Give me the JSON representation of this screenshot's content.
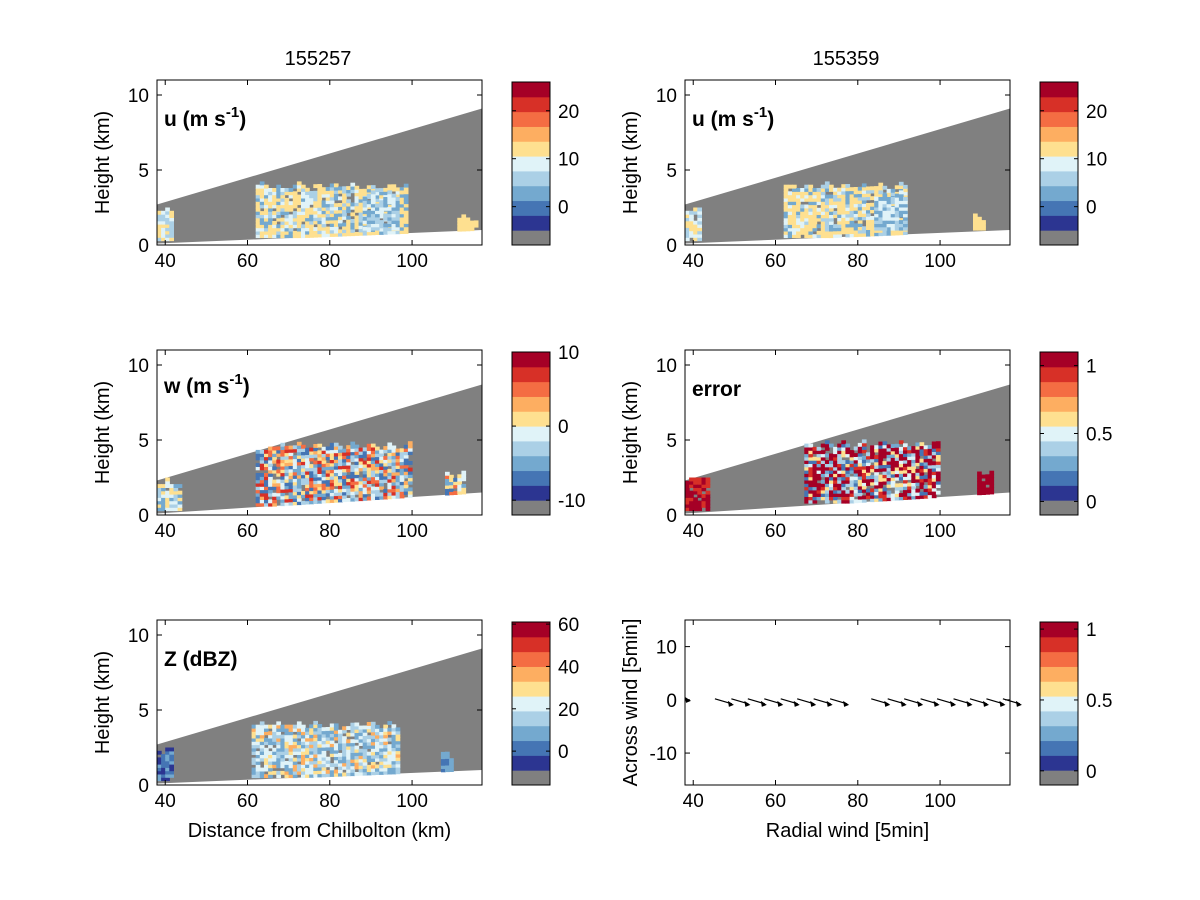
{
  "column_titles": [
    "155257",
    "155359"
  ],
  "colors": {
    "colormap": [
      "#2c3591",
      "#4575b4",
      "#74a9cf",
      "#abd0e6",
      "#e0f3f8",
      "#fee090",
      "#fdae61",
      "#f46d43",
      "#d73027",
      "#a50026"
    ],
    "no_data": "#808080",
    "background": "#ffffff"
  },
  "chart_data": [
    {
      "type": "heatmap",
      "annotation": "u (m s-1)",
      "ylabel": "Height (km)",
      "xlabel": "",
      "xlim": [
        38,
        117
      ],
      "ylim": [
        0,
        11
      ],
      "xticks": [
        40,
        60,
        80,
        100
      ],
      "yticks": [
        0,
        5,
        10
      ],
      "colorbar": {
        "ticks": [
          0,
          10,
          20
        ],
        "range": [
          -8,
          26
        ]
      }
    },
    {
      "type": "heatmap",
      "annotation": "u (m s-1)",
      "ylabel": "Height (km)",
      "xlabel": "",
      "xlim": [
        38,
        117
      ],
      "ylim": [
        0,
        11
      ],
      "xticks": [
        40,
        60,
        80,
        100
      ],
      "yticks": [
        0,
        5,
        10
      ],
      "colorbar": {
        "ticks": [
          0,
          10,
          20
        ],
        "range": [
          -8,
          26
        ]
      }
    },
    {
      "type": "heatmap",
      "annotation": "w (m s-1)",
      "ylabel": "Height (km)",
      "xlabel": "",
      "xlim": [
        38,
        117
      ],
      "ylim": [
        0,
        11
      ],
      "xticks": [
        40,
        60,
        80,
        100
      ],
      "yticks": [
        0,
        5,
        10
      ],
      "colorbar": {
        "ticks": [
          -10,
          0,
          10
        ],
        "range": [
          -12,
          10
        ]
      }
    },
    {
      "type": "heatmap",
      "annotation": "error",
      "ylabel": "Height (km)",
      "xlabel": "",
      "xlim": [
        38,
        117
      ],
      "ylim": [
        0,
        11
      ],
      "xticks": [
        40,
        60,
        80,
        100
      ],
      "yticks": [
        0,
        5,
        10
      ],
      "colorbar": {
        "ticks": [
          0,
          0.5,
          1
        ],
        "range": [
          -0.1,
          1.1
        ]
      }
    },
    {
      "type": "heatmap",
      "annotation": "Z (dBZ)",
      "ylabel": "Height (km)",
      "xlabel": "Distance from Chilbolton (km)",
      "xlim": [
        38,
        117
      ],
      "ylim": [
        0,
        11
      ],
      "xticks": [
        40,
        60,
        80,
        100
      ],
      "yticks": [
        0,
        5,
        10
      ],
      "colorbar": {
        "ticks": [
          0,
          20,
          40,
          60
        ],
        "range": [
          -16,
          61
        ]
      }
    },
    {
      "type": "scatter",
      "subtype": "quiver",
      "annotation": "",
      "ylabel": "Across wind [5min]",
      "xlabel": "Radial wind [5min]",
      "xlim": [
        38,
        117
      ],
      "ylim": [
        -16,
        15
      ],
      "xticks": [
        40,
        60,
        80,
        100
      ],
      "yticks": [
        -10,
        0,
        10
      ],
      "x": [
        38,
        46,
        50,
        54,
        58,
        62,
        66,
        70,
        74,
        84,
        88,
        92,
        96,
        100,
        104,
        108,
        112,
        116
      ],
      "y": [
        0,
        0,
        0,
        0,
        0,
        0,
        0,
        0,
        0,
        0,
        0,
        0,
        0,
        0,
        0,
        0,
        0,
        0
      ],
      "colorbar": {
        "ticks": [
          0,
          0.5,
          1
        ],
        "range": [
          -0.1,
          1.05
        ]
      }
    }
  ]
}
